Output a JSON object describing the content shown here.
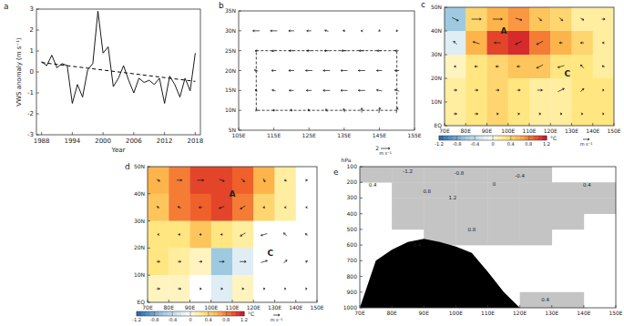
{
  "chart_data": [
    {
      "type": "line",
      "title": "a",
      "x_label": "Year",
      "y_label": "VWS anomaly (m s⁻¹)",
      "x": [
        1988,
        1989,
        1990,
        1991,
        1992,
        1993,
        1994,
        1995,
        1996,
        1997,
        1998,
        1999,
        2000,
        2001,
        2002,
        2003,
        2004,
        2005,
        2006,
        2007,
        2008,
        2009,
        2010,
        2011,
        2012,
        2013,
        2014,
        2015,
        2016,
        2017,
        2018
      ],
      "xlim": [
        1987,
        2019
      ],
      "xticks": [
        1988,
        1994,
        2000,
        2006,
        2012,
        2018
      ],
      "ylim": [
        -3,
        3
      ],
      "yticks": [
        -3,
        -2,
        -1,
        0,
        1,
        2,
        3
      ],
      "series": [
        {
          "color": "#000000",
          "line_style": "solid",
          "values": [
            0.5,
            0.3,
            0.8,
            0.2,
            0.4,
            0.3,
            -1.5,
            -0.6,
            -1.2,
            0.1,
            0.4,
            2.9,
            0.9,
            1.2,
            -0.7,
            -0.3,
            0.3,
            -0.4,
            -1.0,
            -0.3,
            -0.5,
            -0.4,
            -0.6,
            -0.3,
            -1.5,
            -0.2,
            -0.6,
            -1.2,
            -0.3,
            -0.9,
            0.9
          ]
        },
        {
          "color": "#000000",
          "line_style": "dashed",
          "x": [
            1988,
            2018
          ],
          "values": [
            0.45,
            -0.45
          ]
        }
      ]
    },
    {
      "type": "vector",
      "title": "b",
      "xlim": [
        105,
        155
      ],
      "xticks": [
        {
          "value": 105,
          "label": "105E"
        },
        {
          "value": 115,
          "label": "115E"
        },
        {
          "value": 125,
          "label": "125E"
        },
        {
          "value": 135,
          "label": "135E"
        },
        {
          "value": 145,
          "label": "145E"
        },
        {
          "value": 155,
          "label": "155E"
        }
      ],
      "ylim": [
        5,
        35
      ],
      "yticks": [
        {
          "value": 5,
          "label": "5N"
        },
        {
          "value": 10,
          "label": "10N"
        },
        {
          "value": 15,
          "label": "15N"
        },
        {
          "value": 20,
          "label": "20N"
        },
        {
          "value": 25,
          "label": "25N"
        },
        {
          "value": 30,
          "label": "30N"
        },
        {
          "value": 35,
          "label": "35N"
        }
      ],
      "vector_lons": [
        110,
        115,
        120,
        125,
        130,
        135,
        140,
        145,
        150
      ],
      "vector_lats": [
        30,
        25,
        20,
        15,
        10
      ],
      "u": [
        [
          -1.5,
          -1.5,
          -1.2,
          -1,
          -0.8,
          -0.5,
          -0.3,
          -0.2,
          -0.2
        ],
        [
          -0.5,
          -0.8,
          -1,
          -1,
          -1,
          -1.2,
          -1.2,
          -1,
          -0.8
        ],
        [
          -0.8,
          -1,
          -1.2,
          -1.5,
          -1.5,
          -1.5,
          -1.5,
          -1.2,
          -1
        ],
        [
          -0.5,
          -0.8,
          -1,
          -1.2,
          -1.5,
          -1.5,
          -1.5,
          -1.2,
          -1
        ],
        [
          0.2,
          0,
          -0.2,
          -0.3,
          -0.3,
          -0.2,
          0,
          0.2,
          0.3
        ]
      ],
      "v": [
        [
          0,
          0,
          0,
          0,
          0.2,
          0.2,
          0,
          -0.2,
          -0.3
        ],
        [
          -0.2,
          -0.2,
          0,
          0,
          0,
          0,
          0,
          0,
          0
        ],
        [
          0.2,
          0,
          0,
          0,
          0,
          0,
          0,
          0,
          0
        ],
        [
          0.3,
          0.2,
          0,
          0,
          0,
          0,
          0,
          0.2,
          0.3
        ],
        [
          0.5,
          0.5,
          0.5,
          0.5,
          0.6,
          0.8,
          1,
          1.2,
          1.2
        ]
      ],
      "region": {
        "lon": [
          110,
          150
        ],
        "lat": [
          10,
          25
        ]
      },
      "ref_vector": {
        "value": 2,
        "unit": "m s⁻¹"
      }
    },
    {
      "type": "heatmap",
      "title": "c",
      "xlim": [
        70,
        150
      ],
      "xticks": [
        {
          "value": 70,
          "label": "70E"
        },
        {
          "value": 80,
          "label": "80E"
        },
        {
          "value": 90,
          "label": "90E"
        },
        {
          "value": 100,
          "label": "100E"
        },
        {
          "value": 110,
          "label": "110E"
        },
        {
          "value": 120,
          "label": "120E"
        },
        {
          "value": 130,
          "label": "130E"
        },
        {
          "value": 140,
          "label": "140E"
        },
        {
          "value": 150,
          "label": "150E"
        }
      ],
      "ylim": [
        0,
        50
      ],
      "yticks": [
        {
          "value": 0,
          "label": "EQ"
        },
        {
          "value": 10,
          "label": "10N"
        },
        {
          "value": 20,
          "label": "20N"
        },
        {
          "value": 30,
          "label": "30N"
        },
        {
          "value": 40,
          "label": "40N"
        },
        {
          "value": 50,
          "label": "50N"
        }
      ],
      "cell_lon_edges": [
        70,
        80,
        90,
        100,
        110,
        120,
        130,
        140,
        150
      ],
      "cell_lat_edges": [
        50,
        40,
        30,
        20,
        10,
        0
      ],
      "cells": [
        [
          -0.6,
          0.4,
          0.6,
          0.7,
          0.5,
          0.4,
          0.2,
          0.2
        ],
        [
          -0.2,
          0.6,
          1.0,
          1.1,
          0.8,
          0.6,
          0.4,
          0.2
        ],
        [
          0.1,
          0.3,
          0.4,
          0.5,
          0.5,
          0.3,
          0.3,
          0.2
        ],
        [
          0.2,
          0.3,
          0.4,
          0.3,
          0.2,
          0.2,
          0.3,
          0.3
        ],
        [
          0.2,
          0.3,
          0.4,
          0.3,
          0.2,
          0.2,
          0.3,
          0.3
        ]
      ],
      "colorbar": {
        "range": [
          -1.2,
          1.2
        ],
        "ticks": [
          -1.2,
          -0.8,
          -0.4,
          0,
          0.4,
          0.8,
          1.2
        ],
        "label": "°C"
      },
      "vector_lons": [
        75,
        85,
        95,
        105,
        115,
        125,
        135,
        145
      ],
      "vector_lats": [
        45,
        35,
        25,
        15,
        5
      ],
      "u": [
        [
          1,
          1.5,
          1.5,
          1,
          0.5,
          0.5,
          0.5,
          0.5
        ],
        [
          -0.5,
          -1,
          -1,
          -1,
          -1,
          -0.5,
          -0.5,
          -0.3
        ],
        [
          -0.3,
          -0.5,
          -0.5,
          -0.5,
          -1,
          -1,
          -0.5,
          -0.3
        ],
        [
          0.5,
          0.5,
          0.5,
          0.5,
          0.8,
          1,
          0.5,
          0.2
        ],
        [
          0.5,
          0.5,
          0.3,
          0.3,
          0.3,
          0.3,
          0.2,
          0.2
        ]
      ],
      "v": [
        [
          -0.5,
          0,
          0,
          -0.3,
          -0.5,
          -0.5,
          -0.3,
          0
        ],
        [
          0.5,
          0.3,
          0,
          -0.5,
          -0.5,
          0,
          0,
          0
        ],
        [
          0,
          0,
          0,
          0,
          -0.5,
          -0.3,
          0.5,
          0.3
        ],
        [
          0,
          0,
          0,
          0,
          0,
          0.5,
          0.5,
          0
        ],
        [
          0,
          0,
          0,
          0,
          0,
          0,
          0,
          0
        ]
      ],
      "annotations": [
        {
          "text": "A",
          "lon": 98,
          "lat": 40
        },
        {
          "text": "C",
          "lon": 128,
          "lat": 22
        }
      ],
      "ref_vector": {
        "value": 1,
        "unit": "m s⁻¹"
      }
    },
    {
      "type": "heatmap",
      "title": "d",
      "xlim": [
        70,
        150
      ],
      "xticks": [
        {
          "value": 70,
          "label": "70E"
        },
        {
          "value": 80,
          "label": "80E"
        },
        {
          "value": 90,
          "label": "90E"
        },
        {
          "value": 100,
          "label": "100E"
        },
        {
          "value": 110,
          "label": "110E"
        },
        {
          "value": 120,
          "label": "120E"
        },
        {
          "value": 130,
          "label": "130E"
        },
        {
          "value": 140,
          "label": "140E"
        },
        {
          "value": 150,
          "label": "150E"
        }
      ],
      "ylim": [
        0,
        50
      ],
      "yticks": [
        {
          "value": 0,
          "label": "EQ"
        },
        {
          "value": 10,
          "label": "10N"
        },
        {
          "value": 20,
          "label": "20N"
        },
        {
          "value": 30,
          "label": "30N"
        },
        {
          "value": 40,
          "label": "40N"
        },
        {
          "value": 50,
          "label": "50N"
        }
      ],
      "cell_lon_edges": [
        70,
        80,
        90,
        100,
        110,
        120,
        130,
        140,
        150
      ],
      "cell_lat_edges": [
        50,
        40,
        30,
        20,
        10,
        0
      ],
      "cells": [
        [
          0.6,
          0.8,
          1.0,
          1.0,
          0.9,
          0.6,
          0.2,
          0
        ],
        [
          0.5,
          0.8,
          0.9,
          1.0,
          0.8,
          0.4,
          0.2,
          0
        ],
        [
          0.3,
          0.3,
          0.5,
          0.3,
          0.2,
          0,
          0,
          0
        ],
        [
          0.3,
          0.2,
          0.1,
          -0.6,
          -0.2,
          0,
          0,
          0
        ],
        [
          0.1,
          0.1,
          0,
          -0.2,
          0.1,
          0,
          0,
          0
        ]
      ],
      "colorbar": {
        "range": [
          -1.2,
          1.2
        ],
        "ticks": [
          -1.2,
          -0.8,
          -0.4,
          0,
          0.4,
          0.8,
          1.2
        ],
        "label": "°C"
      },
      "vector_lons": [
        75,
        85,
        95,
        105,
        115,
        125,
        135,
        145
      ],
      "vector_lats": [
        45,
        35,
        25,
        15,
        5
      ],
      "u": [
        [
          0.5,
          0.8,
          1,
          0.8,
          0.5,
          0.3,
          0.3,
          0.3
        ],
        [
          -0.3,
          -0.5,
          -0.5,
          -0.8,
          -0.8,
          -0.3,
          -0.2,
          -0.2
        ],
        [
          -0.2,
          -0.3,
          -0.3,
          -0.3,
          -0.8,
          -1,
          -0.5,
          -0.3
        ],
        [
          0.5,
          0.5,
          0.5,
          0.8,
          1,
          1,
          0.5,
          0.3
        ],
        [
          0.5,
          0.5,
          0.3,
          0.3,
          0.3,
          0.3,
          0.2,
          0.2
        ]
      ],
      "v": [
        [
          -0.3,
          0,
          0,
          -0.3,
          -0.5,
          -0.5,
          -0.3,
          0
        ],
        [
          0.3,
          0.2,
          0,
          -0.3,
          -0.5,
          0,
          0,
          0
        ],
        [
          0,
          0,
          0,
          0,
          -0.5,
          -0.3,
          0.5,
          0.3
        ],
        [
          0,
          0,
          0,
          0,
          0,
          0.3,
          0.5,
          0.2
        ],
        [
          0,
          0,
          0,
          0,
          0,
          0,
          0,
          0
        ]
      ],
      "annotations": [
        {
          "text": "A",
          "lon": 110,
          "lat": 40
        },
        {
          "text": "C",
          "lon": 128,
          "lat": 18
        }
      ],
      "ref_vector": {
        "value": 1,
        "unit": "m s⁻¹"
      }
    },
    {
      "type": "contour",
      "title": "e",
      "y_label": "hPa",
      "xlim": [
        70,
        150
      ],
      "xticks": [
        {
          "value": 70,
          "label": "70E"
        },
        {
          "value": 80,
          "label": "80E"
        },
        {
          "value": 90,
          "label": "90E"
        },
        {
          "value": 100,
          "label": "100E"
        },
        {
          "value": 110,
          "label": "110E"
        },
        {
          "value": 120,
          "label": "120E"
        },
        {
          "value": 130,
          "label": "130E"
        },
        {
          "value": 140,
          "label": "140E"
        },
        {
          "value": 150,
          "label": "150E"
        }
      ],
      "ylim": [
        1000,
        100
      ],
      "yticks": [
        100,
        200,
        300,
        400,
        500,
        600,
        700,
        800,
        900,
        1000
      ],
      "cell_lon_edges": [
        70,
        80,
        90,
        100,
        110,
        120,
        130,
        140,
        150
      ],
      "cell_p_edges": [
        100,
        200,
        300,
        400,
        500,
        600,
        700,
        800,
        900,
        1000
      ],
      "significance": [
        [
          1,
          1,
          1,
          1,
          1,
          1,
          0,
          0
        ],
        [
          0,
          1,
          1,
          1,
          1,
          1,
          1,
          1
        ],
        [
          0,
          1,
          1,
          1,
          1,
          1,
          1,
          1
        ],
        [
          0,
          1,
          1,
          1,
          1,
          1,
          1,
          0
        ],
        [
          0,
          0,
          1,
          1,
          1,
          1,
          0,
          0
        ],
        [
          0,
          0,
          0,
          0,
          0,
          0,
          0,
          0
        ],
        [
          0,
          0,
          0,
          0,
          0,
          0,
          0,
          0
        ],
        [
          0,
          0,
          0,
          0,
          0,
          0,
          0,
          0
        ],
        [
          0,
          0,
          0,
          0,
          0,
          1,
          1,
          0
        ]
      ],
      "terrain": {
        "lon": [
          70,
          75,
          80,
          85,
          90,
          95,
          100,
          105,
          110,
          115,
          120
        ],
        "p": [
          1000,
          700,
          630,
          580,
          560,
          580,
          610,
          650,
          770,
          900,
          1000
        ]
      },
      "contour_labels": [
        {
          "value": -1.2,
          "lon": 85,
          "p": 130
        },
        {
          "value": -0.8,
          "lon": 101,
          "p": 140
        },
        {
          "value": -0.4,
          "lon": 120,
          "p": 160
        },
        {
          "value": 0.4,
          "lon": 74,
          "p": 215
        },
        {
          "value": 0,
          "lon": 112,
          "p": 210
        },
        {
          "value": 0.4,
          "lon": 141,
          "p": 215
        },
        {
          "value": 0.8,
          "lon": 91,
          "p": 255
        },
        {
          "value": 1.2,
          "lon": 99,
          "p": 300
        },
        {
          "value": 0.8,
          "lon": 105,
          "p": 500
        },
        {
          "value": 0.4,
          "lon": 88,
          "p": 600
        },
        {
          "value": 0.4,
          "lon": 128,
          "p": 950
        }
      ]
    }
  ]
}
